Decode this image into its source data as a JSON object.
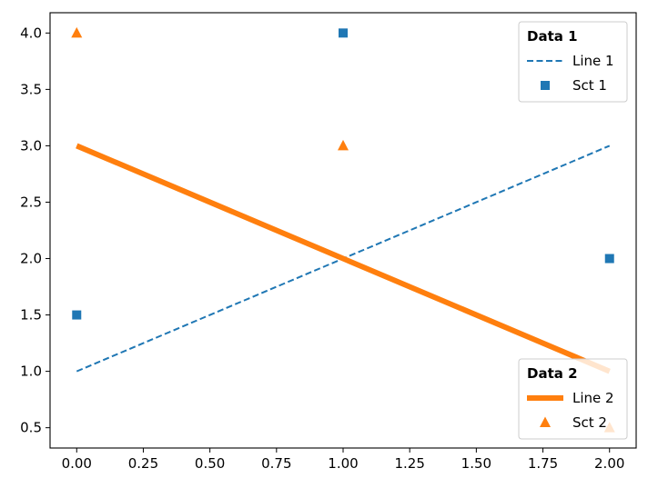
{
  "chart_data": {
    "type": "line",
    "xlim": [
      -0.1,
      2.1
    ],
    "ylim": [
      0.32,
      4.18
    ],
    "x_ticks": [
      0.0,
      0.25,
      0.5,
      0.75,
      1.0,
      1.25,
      1.5,
      1.75,
      2.0
    ],
    "x_tick_labels": [
      "0.00",
      "0.25",
      "0.50",
      "0.75",
      "1.00",
      "1.25",
      "1.50",
      "1.75",
      "2.00"
    ],
    "y_ticks": [
      0.5,
      1.0,
      1.5,
      2.0,
      2.5,
      3.0,
      3.5,
      4.0
    ],
    "y_tick_labels": [
      "0.5",
      "1.0",
      "1.5",
      "2.0",
      "2.5",
      "3.0",
      "3.5",
      "4.0"
    ],
    "grid": false,
    "series": [
      {
        "name": "Line 1",
        "kind": "line",
        "style": "dashed",
        "color": "#1f77b4",
        "x": [
          0,
          1,
          2
        ],
        "y": [
          1,
          2,
          3
        ]
      },
      {
        "name": "Sct 1",
        "kind": "scatter",
        "marker": "square",
        "color": "#1f77b4",
        "x": [
          0,
          1,
          2
        ],
        "y": [
          1.5,
          4,
          2
        ]
      },
      {
        "name": "Line 2",
        "kind": "line",
        "style": "solid-thick",
        "color": "#ff7f0e",
        "x": [
          0,
          1,
          2
        ],
        "y": [
          3,
          2,
          1
        ]
      },
      {
        "name": "Sct 2",
        "kind": "scatter",
        "marker": "triangle",
        "color": "#ff7f0e",
        "x": [
          0,
          1,
          2
        ],
        "y": [
          4,
          3,
          0.5
        ]
      }
    ],
    "legends": [
      {
        "title": "Data 1",
        "placement": "top-right",
        "entries": [
          "Line 1",
          "Sct 1"
        ]
      },
      {
        "title": "Data 2",
        "placement": "bottom-right",
        "entries": [
          "Line 2",
          "Sct 2"
        ]
      }
    ]
  }
}
